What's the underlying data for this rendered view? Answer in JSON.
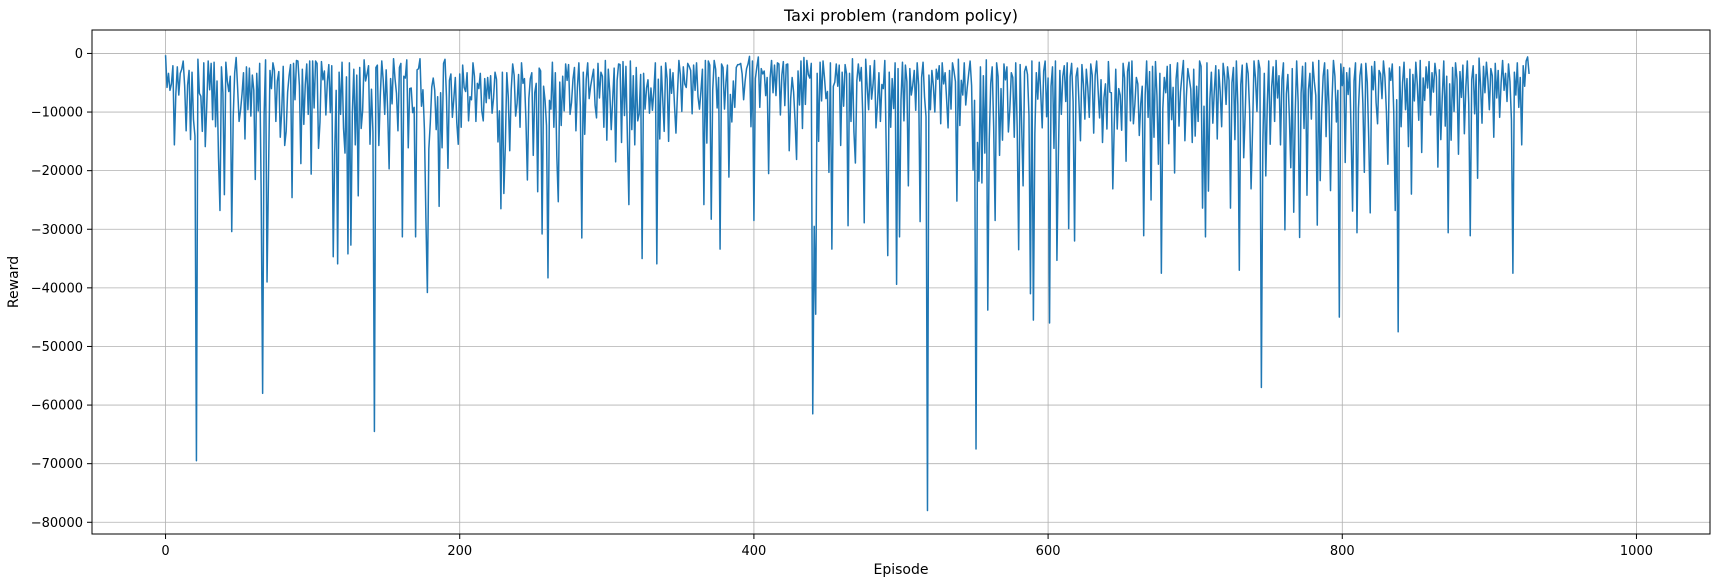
{
  "chart_data": {
    "type": "line",
    "title": "Taxi problem (random policy)",
    "xlabel": "Episode",
    "ylabel": "Reward",
    "xlim": [
      -50,
      1050
    ],
    "ylim": [
      -82000,
      4000
    ],
    "xticks": [
      0,
      200,
      400,
      600,
      800,
      1000
    ],
    "yticks": [
      0,
      -10000,
      -20000,
      -30000,
      -40000,
      -50000,
      -60000,
      -70000,
      -80000
    ],
    "grid": true,
    "legend": "none",
    "series_color": "#1f77b4",
    "notable_points": [
      {
        "x": 21,
        "y": -69500
      },
      {
        "x": 66,
        "y": -58000
      },
      {
        "x": 142,
        "y": -64500
      },
      {
        "x": 435,
        "y": -61500
      },
      {
        "x": 506,
        "y": -78000
      },
      {
        "x": 545,
        "y": -67500
      },
      {
        "x": 589,
        "y": -45500
      },
      {
        "x": 784,
        "y": -57000
      },
      {
        "x": 919,
        "y": -47500
      },
      {
        "x": 987,
        "y": -37500
      }
    ],
    "series": [
      {
        "x_start": 0,
        "x_step": 1,
        "values": [
          -300,
          -5800,
          -3400,
          -6300,
          -5200,
          -2100,
          -15600,
          -6900,
          -2300,
          -7100,
          -3400,
          -2700,
          -1300,
          -5600,
          -13200,
          -5400,
          -2900,
          -14700,
          -3200,
          -11300,
          -14100,
          -69500,
          -1000,
          -6800,
          -7300,
          -13300,
          -1600,
          -15900,
          -9000,
          -1300,
          -6200,
          -1700,
          -11300,
          -1500,
          -12500,
          -4700,
          -17800,
          -26800,
          -2300,
          -6700,
          -24100,
          -1500,
          -4700,
          -6500,
          -3900,
          -30400,
          -10900,
          -3300,
          -700,
          -5900,
          -11600,
          -9700,
          -6900,
          -3300,
          -14600,
          -2300,
          -9600,
          -2500,
          -10700,
          -3700,
          -6300,
          -21500,
          -3400,
          -9800,
          -1700,
          -23400,
          -58000,
          -10500,
          -1100,
          -39000,
          -20400,
          -2900,
          -6000,
          -1600,
          -2900,
          -11600,
          -4700,
          -3100,
          -14300,
          -9700,
          -2200,
          -15700,
          -13300,
          -6600,
          -3800,
          -1900,
          -24600,
          -1700,
          -7900,
          -1200,
          -1300,
          -5500,
          -18800,
          -2700,
          -12100,
          -5300,
          -1800,
          -10400,
          -1300,
          -20600,
          -1300,
          -9300,
          -1300,
          -1700,
          -16200,
          -11700,
          -1400,
          -4500,
          -3000,
          -10500,
          -4800,
          -1900,
          -10100,
          -2100,
          -34700,
          -16900,
          -6300,
          -35900,
          -3200,
          -10400,
          -1500,
          -12800,
          -17000,
          -4000,
          -34200,
          -1600,
          -32700,
          -10100,
          -2700,
          -15600,
          -3700,
          -24300,
          -2400,
          -12800,
          -9700,
          -1100,
          -4700,
          -3500,
          -2100,
          -15500,
          -6100,
          -13400,
          -64500,
          -2400,
          -2000,
          -15700,
          -7200,
          -1300,
          -4600,
          -10400,
          -2800,
          -9700,
          -19700,
          -4300,
          -8600,
          -900,
          -4300,
          -6800,
          -13200,
          -2400,
          -1700,
          -31300,
          -3900,
          -4200,
          -1100,
          -16100,
          -6000,
          -5900,
          -10100,
          -9200,
          -31300,
          -2800,
          -2600,
          -900,
          -9000,
          -6200,
          -13000,
          -28100,
          -40800,
          -16300,
          -11800,
          -5700,
          -4200,
          -6300,
          -13000,
          -7400,
          -26100,
          -6700,
          -16100,
          -1700,
          -1000,
          -7400,
          -19600,
          -4600,
          -3500,
          -10900,
          -7700,
          -4100,
          -11800,
          -15500,
          -3500,
          -12600,
          -2000,
          -5800,
          -6500,
          -3300,
          -11500,
          -7400,
          -7900,
          -1600,
          -3900,
          -11600,
          -5100,
          -6000,
          -3400,
          -9800,
          -11500,
          -4300,
          -8400,
          -4100,
          -7700,
          -3800,
          -10200,
          -7600,
          -3200,
          -4400,
          -15100,
          -9800,
          -26500,
          -3200,
          -23900,
          -15800,
          -3300,
          -7400,
          -16600,
          -6200,
          -1800,
          -3700,
          -10700,
          -8500,
          -3600,
          -12600,
          -1600,
          -5100,
          -4300,
          -11300,
          -21600,
          -7700,
          -4300,
          -3300,
          -17400,
          -6700,
          -5100,
          -23600,
          -2500,
          -3000,
          -30800,
          -5600,
          -8000,
          -12300,
          -38300,
          -8000,
          -9500,
          -1500,
          -12600,
          -3300,
          -17500,
          -25300,
          -4900,
          -12300,
          -3900,
          -9800,
          -1800,
          -4600,
          -1900,
          -10400,
          -8400,
          -4400,
          -2400,
          -13200,
          -5800,
          -1600,
          -9100,
          -31500,
          -3200,
          -13800,
          -4400,
          -1600,
          -7700,
          -5600,
          -4100,
          -2700,
          -8800,
          -11000,
          -1700,
          -7600,
          -3200,
          -3900,
          -12600,
          -1200,
          -14800,
          -2700,
          -6500,
          -13000,
          -7800,
          -2500,
          -18500,
          -4600,
          -1800,
          -1900,
          -15200,
          -1400,
          -10600,
          -2200,
          -14500,
          -25800,
          -1300,
          -13000,
          -3800,
          -15600,
          -2400,
          -11500,
          -10300,
          -3600,
          -35000,
          -3400,
          -9500,
          -5900,
          -4500,
          -10200,
          -5900,
          -9700,
          -6300,
          -1600,
          -35900,
          -4400,
          -14600,
          -2200,
          -7700,
          -13300,
          -1600,
          -4400,
          -15000,
          -2700,
          -6800,
          -3300,
          -8800,
          -13600,
          -7000,
          -1200,
          -3600,
          -9900,
          -2300,
          -5200,
          -5800,
          -1700,
          -2200,
          -2900,
          -10300,
          -2000,
          -6300,
          -1600,
          -7400,
          -9500,
          -6400,
          -2700,
          -25800,
          -1200,
          -15300,
          -1300,
          -2000,
          -28300,
          -6200,
          -1200,
          -2700,
          -9300,
          -4100,
          -33400,
          -1800,
          -2400,
          -9500,
          -4900,
          -2000,
          -21100,
          -7000,
          -11700,
          -4700,
          -9200,
          -2400,
          -1900,
          -1900,
          -1700,
          -3500,
          -7900,
          -4800,
          -2600,
          -1800,
          -500,
          -12500,
          -1300,
          -28500,
          -4300,
          -2300,
          -600,
          -9200,
          -2600,
          -3500,
          -3000,
          -7200,
          -4100,
          -20500,
          -4200,
          -1200,
          -6700,
          -2000,
          -7200,
          -1600,
          -1800,
          -10500,
          -3700,
          -1400,
          -8900,
          -1900,
          -1800,
          -16600,
          -7700,
          -4100,
          -6600,
          -11600,
          -18100,
          -3000,
          -8800,
          -1300,
          -12800,
          -700,
          -8700,
          -1200,
          -3600,
          -4200,
          -1700,
          -61500,
          -29500,
          -44500,
          -3400,
          -15000,
          -1500,
          -8100,
          -1300,
          -4200,
          -7700,
          -6500,
          -20300,
          -1600,
          -33400,
          -5600,
          -4900,
          -1800,
          -5600,
          -2000,
          -15700,
          -3200,
          -9000,
          -1900,
          -3500,
          -29400,
          -3400,
          -11600,
          -900,
          -13400,
          -18700,
          -4600,
          -1800,
          -4700,
          -2400,
          -10500,
          -28900,
          -1000,
          -5700,
          -9600,
          -2100,
          -7800,
          -5300,
          -1200,
          -12700,
          -8600,
          -3300,
          -11600,
          -5300,
          -6000,
          -1200,
          -17000,
          -34500,
          -3200,
          -12600,
          -4300,
          -9400,
          -1600,
          -39400,
          -2600,
          -31300,
          -7900,
          -1500,
          -11500,
          -2000,
          -4800,
          -22600,
          -2600,
          -7100,
          -5400,
          -2900,
          -9700,
          -1600,
          -5400,
          -28700,
          -4100,
          -1500,
          -7400,
          -10800,
          -78000,
          -3700,
          -9600,
          -2900,
          -5500,
          -10000,
          -2700,
          -4400,
          -2100,
          -12000,
          -1600,
          -5200,
          -3300,
          -7800,
          -12700,
          -2900,
          -9500,
          -1600,
          -3000,
          -4800,
          -25200,
          -1000,
          -12300,
          -4600,
          -7100,
          -1600,
          -8800,
          -5900,
          -3500,
          -1300,
          -5500,
          -19900,
          -8000,
          -67500,
          -15200,
          -21800,
          -2300,
          -22100,
          -3800,
          -17000,
          -1100,
          -43800,
          -14800,
          -5100,
          -2300,
          -12500,
          -28500,
          -1600,
          -3900,
          -17400,
          -6000,
          -14800,
          -1800,
          -4500,
          -2300,
          -13400,
          -9500,
          -3300,
          -4100,
          -14300,
          -1600,
          -12800,
          -33500,
          -1900,
          -12000,
          -22600,
          -3100,
          -2200,
          -3600,
          -10500,
          -41000,
          -1300,
          -45500,
          -13700,
          -3300,
          -7800,
          -1500,
          -6800,
          -12700,
          -3000,
          -1300,
          -10800,
          -4200,
          -46000,
          -5600,
          -2300,
          -16200,
          -1300,
          -35300,
          -17600,
          -2900,
          -10400,
          -3900,
          -2100,
          -8200,
          -1600,
          -29900,
          -4000,
          -1700,
          -8200,
          -32000,
          -4000,
          -2500,
          -8400,
          -14900,
          -1900,
          -5200,
          -11200,
          -2700,
          -5800,
          -10900,
          -1800,
          -3700,
          -13600,
          -3800,
          -1300,
          -6200,
          -11000,
          -4500,
          -15200,
          -7500,
          -5200,
          -12900,
          -1400,
          -6600,
          -6700,
          -23100,
          -12000,
          -2700,
          -12900,
          -6000,
          -7100,
          -13100,
          -1700,
          -4200,
          -18400,
          -3100,
          -1500,
          -11500,
          -1300,
          -12000,
          -8700,
          -4100,
          -5200,
          -14000,
          -8600,
          -5600,
          -31100,
          -7100,
          -1300,
          -10900,
          -3100,
          -25000,
          -2200,
          -14300,
          -1400,
          -7200,
          -18900,
          -3400,
          -37500,
          -9400,
          -4100,
          -6700,
          -2200,
          -15400,
          -1900,
          -11300,
          -5800,
          -20400,
          -4400,
          -1600,
          -12400,
          -6600,
          -3800,
          -1200,
          -14900,
          -7400,
          -2600,
          -4300,
          -6100,
          -15200,
          -2700,
          -14100,
          -5600,
          -11600,
          -1300,
          -2200,
          -26400,
          -9000,
          -31300,
          -1600,
          -23500,
          -7800,
          -3200,
          -11900,
          -6400,
          -2100,
          -14600,
          -2800,
          -6500,
          -12500,
          -1700,
          -3900,
          -8700,
          -2300,
          -4600,
          -26400,
          -5000,
          -2400,
          -14700,
          -1300,
          -8800,
          -37000,
          -5300,
          -2000,
          -17800,
          -10200,
          -1700,
          -3400,
          -9700,
          -23100,
          -13100,
          -1300,
          -4200,
          -9900,
          -1200,
          -2600,
          -57000,
          -15300,
          -3400,
          -20900,
          -8700,
          -1300,
          -15500,
          -5700,
          -2300,
          -11600,
          -1200,
          -7600,
          -3800,
          -15600,
          -4400,
          -1600,
          -30100,
          -6900,
          -3600,
          -10700,
          -19500,
          -2600,
          -27100,
          -10300,
          -1300,
          -8300,
          -31400,
          -6800,
          -2200,
          -12800,
          -1600,
          -24200,
          -6200,
          -3400,
          -11200,
          -1500,
          -4800,
          -7200,
          -29300,
          -1200,
          -21700,
          -9800,
          -3900,
          -1600,
          -14200,
          -2800,
          -9100,
          -23400,
          -8100,
          -1200,
          -3900,
          -11700,
          -6300,
          -45000,
          -1800,
          -5500,
          -2400,
          -18600,
          -3300,
          -7000,
          -2500,
          -13500,
          -26900,
          -4700,
          -1600,
          -30600,
          -9400,
          -3800,
          -1800,
          -8500,
          -20300,
          -1700,
          -4900,
          -14600,
          -27200,
          -2200,
          -6200,
          -1400,
          -8400,
          -12000,
          -2900,
          -3500,
          -7700,
          -1300,
          -4100,
          -9900,
          -18900,
          -2500,
          -4600,
          -1800,
          -10000,
          -26800,
          -7900,
          -47500,
          -2300,
          -12500,
          -5000,
          -1500,
          -9600,
          -4300,
          -15900,
          -2700,
          -24000,
          -3600,
          -8100,
          -1500,
          -5300,
          -11400,
          -1200,
          -16900,
          -4200,
          -8000,
          -2300,
          -5900,
          -1400,
          -10500,
          -3300,
          -6600,
          -1700,
          -4000,
          -19400,
          -2800,
          -14700,
          -7300,
          -1300,
          -12400,
          -3900,
          -30600,
          -5200,
          -14800,
          -2400,
          -9900,
          -1600,
          -4400,
          -17200,
          -3100,
          -7500,
          -2000,
          -13700,
          -5800,
          -1300,
          -8700,
          -31100,
          -4500,
          -2100,
          -10300,
          -3600,
          -21300,
          -800,
          -5400,
          -11900,
          -2200,
          -6700,
          -1500,
          -4600,
          -9600,
          -2600,
          -3800,
          -14300,
          -1700,
          -7600,
          -2900,
          -10900,
          -5000,
          -1200,
          -6300,
          -3400,
          -8200,
          -1800,
          -4800,
          -11300,
          -37500,
          -3200,
          -7100,
          -1600,
          -9200,
          -4100,
          -15600,
          -2100,
          -5600,
          -1300,
          -600,
          -3500
        ]
      }
    ]
  }
}
